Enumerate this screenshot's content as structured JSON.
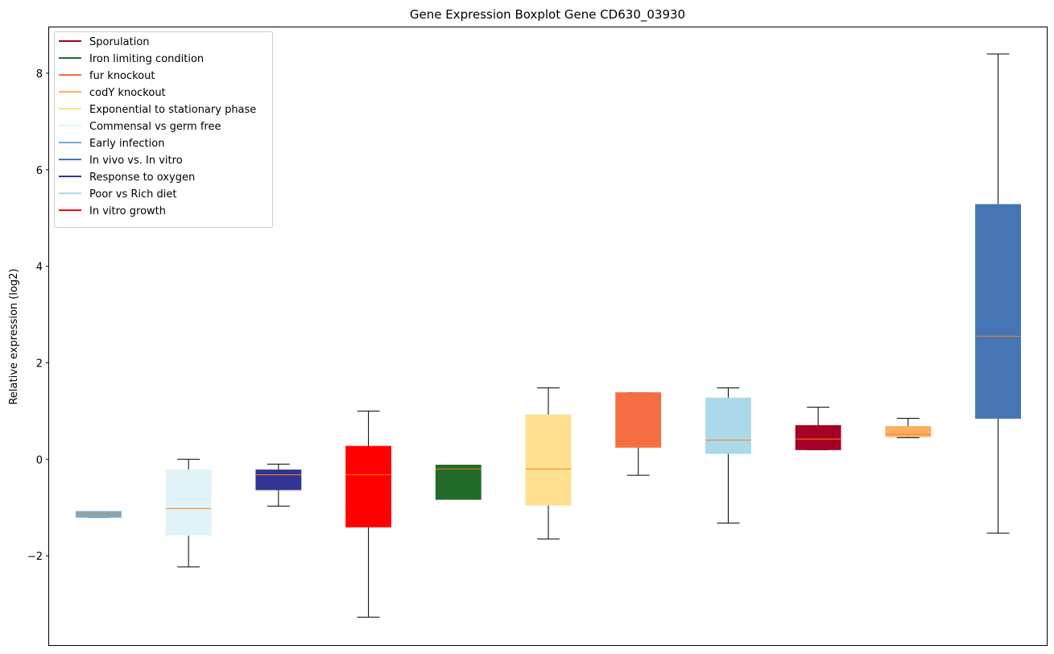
{
  "chart_data": {
    "type": "boxplot",
    "title": "Gene Expression Boxplot Gene CD630_03930",
    "xlabel": "",
    "ylabel": "Relative expression (log2)",
    "ylim": [
      -3.85,
      8.95
    ],
    "yticks": [
      -2,
      0,
      2,
      4,
      6,
      8
    ],
    "ytick_labels": [
      "−2",
      "0",
      "2",
      "4",
      "6",
      "8"
    ],
    "median_color": "#ff7f0e",
    "whisker_color": "#000000",
    "legend": {
      "position": "top-left",
      "entries": [
        {
          "label": "Sporulation",
          "color": "#a50026"
        },
        {
          "label": "Iron limiting condition",
          "color": "#226b2b"
        },
        {
          "label": "fur knockout",
          "color": "#f46d43"
        },
        {
          "label": "codY knockout",
          "color": "#fdae61"
        },
        {
          "label": "Exponential to stationary phase",
          "color": "#fee090"
        },
        {
          "label": "Commensal vs germ free",
          "color": "#e0f3f8"
        },
        {
          "label": "Early infection",
          "color": "#74add1"
        },
        {
          "label": "In vivo vs. In vitro",
          "color": "#4575b4"
        },
        {
          "label": "Response to oxygen",
          "color": "#313695"
        },
        {
          "label": "Poor vs Rich diet",
          "color": "#abd9e9"
        },
        {
          "label": "In vitro growth",
          "color": "#ff0000"
        }
      ]
    },
    "boxes": [
      {
        "group": "Early infection",
        "color": "#74add1",
        "whislo": -1.2,
        "q1": -1.2,
        "med": -1.13,
        "q3": -1.08,
        "whishi": -1.08
      },
      {
        "group": "Commensal vs germ free",
        "color": "#e0f3f8",
        "whislo": -2.23,
        "q1": -1.57,
        "med": -1.02,
        "q3": -0.22,
        "whishi": 0.0
      },
      {
        "group": "Response to oxygen",
        "color": "#313695",
        "whislo": -0.97,
        "q1": -0.63,
        "med": -0.32,
        "q3": -0.22,
        "whishi": -0.1
      },
      {
        "group": "In vitro growth",
        "color": "#ff0000",
        "whislo": -3.27,
        "q1": -1.4,
        "med": -0.32,
        "q3": 0.27,
        "whishi": 1.0
      },
      {
        "group": "Iron limiting condition",
        "color": "#226b2b",
        "whislo": -0.83,
        "q1": -0.83,
        "med": -0.2,
        "q3": -0.12,
        "whishi": -0.12
      },
      {
        "group": "Exponential to stationary phase",
        "color": "#fee090",
        "whislo": -1.65,
        "q1": -0.95,
        "med": -0.2,
        "q3": 0.92,
        "whishi": 1.48
      },
      {
        "group": "fur knockout",
        "color": "#f46d43",
        "whislo": -0.33,
        "q1": 0.25,
        "med": 0.28,
        "q3": 1.38,
        "whishi": 1.38
      },
      {
        "group": "Poor vs Rich diet",
        "color": "#abd9e9",
        "whislo": -1.32,
        "q1": 0.12,
        "med": 0.4,
        "q3": 1.27,
        "whishi": 1.48
      },
      {
        "group": "Sporulation",
        "color": "#a50026",
        "whislo": 0.2,
        "q1": 0.2,
        "med": 0.42,
        "q3": 0.7,
        "whishi": 1.08
      },
      {
        "group": "codY knockout",
        "color": "#fdae61",
        "whislo": 0.45,
        "q1": 0.47,
        "med": 0.52,
        "q3": 0.68,
        "whishi": 0.85
      },
      {
        "group": "In vivo vs. In vitro",
        "color": "#4575b4",
        "whislo": -1.53,
        "q1": 0.85,
        "med": 2.55,
        "q3": 5.28,
        "whishi": 8.4
      }
    ]
  }
}
